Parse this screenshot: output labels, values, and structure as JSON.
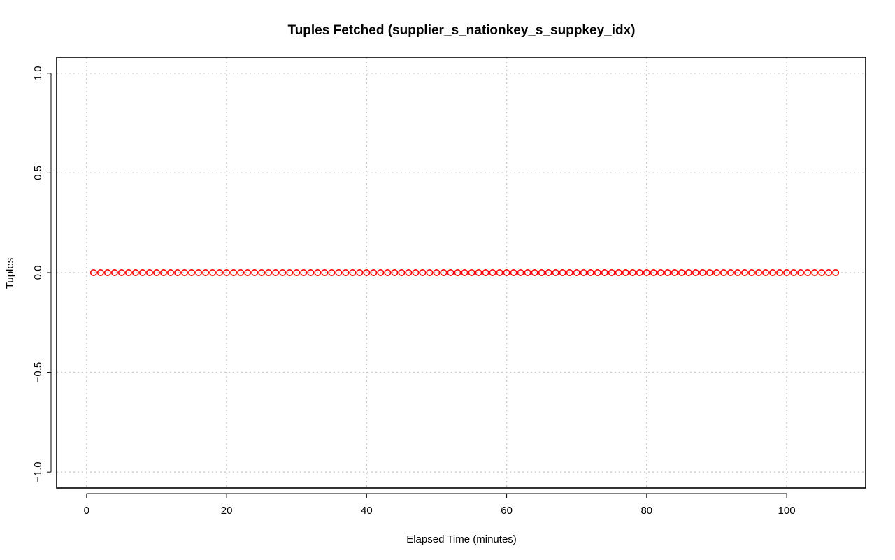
{
  "chart_data": {
    "type": "scatter",
    "title": "Tuples Fetched (supplier_s_nationkey_s_suppkey_idx)",
    "xlabel": "Elapsed Time (minutes)",
    "ylabel": "Tuples",
    "xlim": [
      -4.28,
      111.28
    ],
    "ylim": [
      -1.08,
      1.08
    ],
    "x_ticks": [
      0,
      20,
      40,
      60,
      80,
      100
    ],
    "x_tick_labels": [
      "0",
      "20",
      "40",
      "60",
      "80",
      "100"
    ],
    "y_ticks": [
      -1.0,
      -0.5,
      0.0,
      0.5,
      1.0
    ],
    "y_tick_labels": [
      "−1.0",
      "−0.5",
      "0.0",
      "0.5",
      "1.0"
    ],
    "grid": true,
    "point_color": "#ff0000",
    "marker": "open-circle",
    "series": [
      {
        "x": [
          1,
          2,
          3,
          4,
          5,
          6,
          7,
          8,
          9,
          10,
          11,
          12,
          13,
          14,
          15,
          16,
          17,
          18,
          19,
          20,
          21,
          22,
          23,
          24,
          25,
          26,
          27,
          28,
          29,
          30,
          31,
          32,
          33,
          34,
          35,
          36,
          37,
          38,
          39,
          40,
          41,
          42,
          43,
          44,
          45,
          46,
          47,
          48,
          49,
          50,
          51,
          52,
          53,
          54,
          55,
          56,
          57,
          58,
          59,
          60,
          61,
          62,
          63,
          64,
          65,
          66,
          67,
          68,
          69,
          70,
          71,
          72,
          73,
          74,
          75,
          76,
          77,
          78,
          79,
          80,
          81,
          82,
          83,
          84,
          85,
          86,
          87,
          88,
          89,
          90,
          91,
          92,
          93,
          94,
          95,
          96,
          97,
          98,
          99,
          100,
          101,
          102,
          103,
          104,
          105,
          106,
          107
        ],
        "y": [
          0,
          0,
          0,
          0,
          0,
          0,
          0,
          0,
          0,
          0,
          0,
          0,
          0,
          0,
          0,
          0,
          0,
          0,
          0,
          0,
          0,
          0,
          0,
          0,
          0,
          0,
          0,
          0,
          0,
          0,
          0,
          0,
          0,
          0,
          0,
          0,
          0,
          0,
          0,
          0,
          0,
          0,
          0,
          0,
          0,
          0,
          0,
          0,
          0,
          0,
          0,
          0,
          0,
          0,
          0,
          0,
          0,
          0,
          0,
          0,
          0,
          0,
          0,
          0,
          0,
          0,
          0,
          0,
          0,
          0,
          0,
          0,
          0,
          0,
          0,
          0,
          0,
          0,
          0,
          0,
          0,
          0,
          0,
          0,
          0,
          0,
          0,
          0,
          0,
          0,
          0,
          0,
          0,
          0,
          0,
          0,
          0,
          0,
          0,
          0,
          0,
          0,
          0,
          0,
          0,
          0,
          0
        ]
      }
    ]
  }
}
